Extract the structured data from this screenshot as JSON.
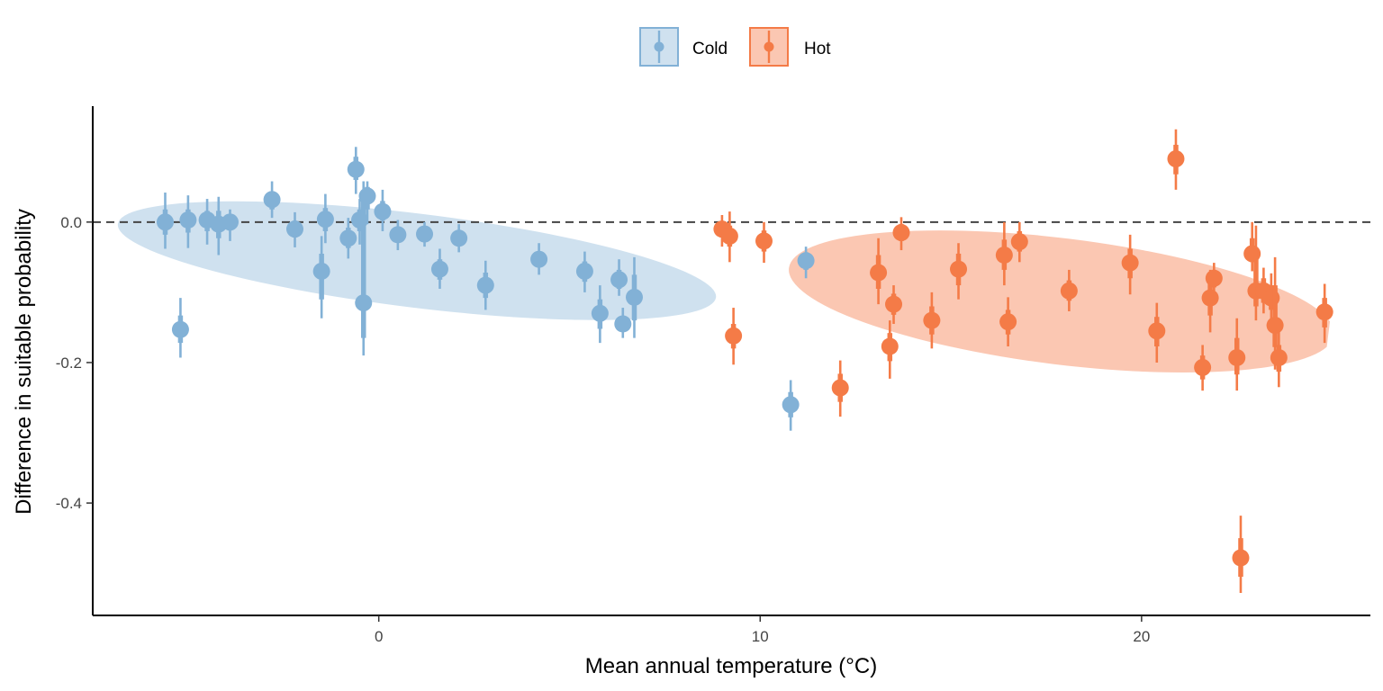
{
  "chart_data": {
    "type": "scatter",
    "title": "",
    "xlabel": "Mean annual temperature (°C)",
    "ylabel": "Difference in suitable probability",
    "xlim": [
      -7.5,
      26.0
    ],
    "ylim": [
      -0.56,
      0.165
    ],
    "x_ticks": [
      0,
      10,
      20
    ],
    "y_ticks": [
      0.0,
      -0.2,
      -0.4
    ],
    "x_tick_labels": [
      "0",
      "10",
      "20"
    ],
    "y_tick_labels": [
      "0.0",
      "-0.2",
      "-0.4"
    ],
    "grid": false,
    "reference_line": {
      "y": 0,
      "style": "dashed",
      "color": "#444444"
    },
    "legend": {
      "placement": "top-center",
      "entries": [
        "Cold",
        "Hot"
      ]
    },
    "colors": {
      "Cold": "#82b1d6",
      "Hot": "#f47b47",
      "Cold_fill": "#cfe1ef",
      "Hot_fill": "#fbc7b2"
    },
    "ellipses": [
      {
        "series": "Cold",
        "center": [
          1.0,
          -0.055
        ],
        "x_half_width": 7.9,
        "y_half_width": 0.108,
        "tilt": "downward"
      },
      {
        "series": "Hot",
        "center": [
          17.9,
          -0.113
        ],
        "x_half_width": 7.2,
        "y_half_width": 0.145,
        "tilt": "downward"
      }
    ],
    "series": [
      {
        "name": "Cold",
        "points": [
          {
            "x": -5.6,
            "y": 0.0,
            "lo90": -0.038,
            "hi90": 0.042,
            "lo50": -0.018,
            "hi50": 0.018
          },
          {
            "x": -5.2,
            "y": -0.153,
            "lo90": -0.193,
            "hi90": -0.108,
            "lo50": -0.172,
            "hi50": -0.133
          },
          {
            "x": -5.0,
            "y": 0.003,
            "lo90": -0.037,
            "hi90": 0.038,
            "lo50": -0.015,
            "hi50": 0.018
          },
          {
            "x": -4.5,
            "y": 0.003,
            "lo90": -0.032,
            "hi90": 0.033,
            "lo50": -0.013,
            "hi50": 0.016
          },
          {
            "x": -4.2,
            "y": -0.003,
            "lo90": -0.047,
            "hi90": 0.036,
            "lo50": -0.023,
            "hi50": 0.016
          },
          {
            "x": -3.9,
            "y": 0.0,
            "lo90": -0.027,
            "hi90": 0.018,
            "lo50": -0.012,
            "hi50": 0.008
          },
          {
            "x": -2.8,
            "y": 0.032,
            "lo90": 0.006,
            "hi90": 0.058,
            "lo50": 0.018,
            "hi50": 0.044
          },
          {
            "x": -2.2,
            "y": -0.01,
            "lo90": -0.036,
            "hi90": 0.014,
            "lo50": -0.022,
            "hi50": 0.002
          },
          {
            "x": -1.5,
            "y": -0.07,
            "lo90": -0.137,
            "hi90": -0.02,
            "lo50": -0.11,
            "hi50": -0.045
          },
          {
            "x": -1.4,
            "y": 0.004,
            "lo90": -0.03,
            "hi90": 0.04,
            "lo50": -0.013,
            "hi50": 0.02
          },
          {
            "x": -0.8,
            "y": -0.023,
            "lo90": -0.052,
            "hi90": 0.006,
            "lo50": -0.037,
            "hi50": -0.008
          },
          {
            "x": -0.6,
            "y": 0.075,
            "lo90": 0.04,
            "hi90": 0.107,
            "lo50": 0.06,
            "hi50": 0.093
          },
          {
            "x": -0.5,
            "y": 0.003,
            "lo90": -0.032,
            "hi90": 0.033,
            "lo50": -0.013,
            "hi50": 0.018
          },
          {
            "x": -0.4,
            "y": -0.115,
            "lo90": -0.19,
            "hi90": 0.058,
            "lo50": -0.165,
            "hi50": 0.045
          },
          {
            "x": -0.3,
            "y": 0.037,
            "lo90": -0.003,
            "hi90": 0.058,
            "lo50": 0.018,
            "hi50": 0.05
          },
          {
            "x": 0.1,
            "y": 0.015,
            "lo90": -0.013,
            "hi90": 0.046,
            "lo50": 0.002,
            "hi50": 0.03
          },
          {
            "x": 0.5,
            "y": -0.018,
            "lo90": -0.04,
            "hi90": 0.003,
            "lo50": -0.028,
            "hi50": -0.008
          },
          {
            "x": 1.2,
            "y": -0.017,
            "lo90": -0.035,
            "hi90": 0.0,
            "lo50": -0.026,
            "hi50": -0.008
          },
          {
            "x": 1.6,
            "y": -0.067,
            "lo90": -0.095,
            "hi90": -0.038,
            "lo50": -0.082,
            "hi50": -0.053
          },
          {
            "x": 2.1,
            "y": -0.023,
            "lo90": -0.043,
            "hi90": -0.003,
            "lo50": -0.032,
            "hi50": -0.013
          },
          {
            "x": 2.8,
            "y": -0.09,
            "lo90": -0.125,
            "hi90": -0.055,
            "lo50": -0.108,
            "hi50": -0.072
          },
          {
            "x": 4.2,
            "y": -0.053,
            "lo90": -0.075,
            "hi90": -0.03,
            "lo50": -0.064,
            "hi50": -0.042
          },
          {
            "x": 5.4,
            "y": -0.07,
            "lo90": -0.1,
            "hi90": -0.042,
            "lo50": -0.085,
            "hi50": -0.056
          },
          {
            "x": 5.8,
            "y": -0.13,
            "lo90": -0.172,
            "hi90": -0.09,
            "lo50": -0.152,
            "hi50": -0.11
          },
          {
            "x": 6.3,
            "y": -0.082,
            "lo90": -0.105,
            "hi90": -0.053,
            "lo50": -0.095,
            "hi50": -0.068
          },
          {
            "x": 6.4,
            "y": -0.145,
            "lo90": -0.165,
            "hi90": -0.122,
            "lo50": -0.155,
            "hi50": -0.135
          },
          {
            "x": 6.7,
            "y": -0.107,
            "lo90": -0.165,
            "hi90": -0.05,
            "lo50": -0.14,
            "hi50": -0.075
          },
          {
            "x": 11.2,
            "y": -0.055,
            "lo90": -0.08,
            "hi90": -0.035,
            "lo50": -0.068,
            "hi50": -0.043
          },
          {
            "x": 10.8,
            "y": -0.26,
            "lo90": -0.297,
            "hi90": -0.225,
            "lo50": -0.278,
            "hi50": -0.242
          }
        ]
      },
      {
        "name": "Hot",
        "points": [
          {
            "x": 9.0,
            "y": -0.01,
            "lo90": -0.035,
            "hi90": 0.01,
            "lo50": -0.022,
            "hi50": 0.0
          },
          {
            "x": 9.2,
            "y": -0.02,
            "lo90": -0.057,
            "hi90": 0.015,
            "lo50": -0.035,
            "hi50": -0.005
          },
          {
            "x": 9.3,
            "y": -0.162,
            "lo90": -0.203,
            "hi90": -0.122,
            "lo50": -0.18,
            "hi50": -0.145
          },
          {
            "x": 10.1,
            "y": -0.027,
            "lo90": -0.058,
            "hi90": 0.0,
            "lo50": -0.042,
            "hi50": -0.012
          },
          {
            "x": 12.1,
            "y": -0.236,
            "lo90": -0.277,
            "hi90": -0.197,
            "lo50": -0.256,
            "hi50": -0.216
          },
          {
            "x": 13.1,
            "y": -0.072,
            "lo90": -0.117,
            "hi90": -0.023,
            "lo50": -0.095,
            "hi50": -0.047
          },
          {
            "x": 13.4,
            "y": -0.177,
            "lo90": -0.223,
            "hi90": -0.14,
            "lo50": -0.198,
            "hi50": -0.158
          },
          {
            "x": 13.5,
            "y": -0.117,
            "lo90": -0.145,
            "hi90": -0.09,
            "lo50": -0.132,
            "hi50": -0.102
          },
          {
            "x": 13.7,
            "y": -0.015,
            "lo90": -0.04,
            "hi90": 0.007,
            "lo50": -0.027,
            "hi50": -0.003
          },
          {
            "x": 14.5,
            "y": -0.14,
            "lo90": -0.18,
            "hi90": -0.1,
            "lo50": -0.16,
            "hi50": -0.12
          },
          {
            "x": 15.2,
            "y": -0.067,
            "lo90": -0.11,
            "hi90": -0.03,
            "lo50": -0.09,
            "hi50": -0.045
          },
          {
            "x": 16.4,
            "y": -0.047,
            "lo90": -0.09,
            "hi90": 0.0,
            "lo50": -0.068,
            "hi50": -0.025
          },
          {
            "x": 16.5,
            "y": -0.142,
            "lo90": -0.177,
            "hi90": -0.107,
            "lo50": -0.16,
            "hi50": -0.125
          },
          {
            "x": 16.8,
            "y": -0.028,
            "lo90": -0.057,
            "hi90": 0.0,
            "lo50": -0.042,
            "hi50": -0.013
          },
          {
            "x": 18.1,
            "y": -0.098,
            "lo90": -0.127,
            "hi90": -0.068,
            "lo50": -0.112,
            "hi50": -0.083
          },
          {
            "x": 19.7,
            "y": -0.058,
            "lo90": -0.103,
            "hi90": -0.018,
            "lo50": -0.08,
            "hi50": -0.038
          },
          {
            "x": 20.4,
            "y": -0.155,
            "lo90": -0.2,
            "hi90": -0.115,
            "lo50": -0.177,
            "hi50": -0.135
          },
          {
            "x": 20.9,
            "y": 0.09,
            "lo90": 0.046,
            "hi90": 0.132,
            "lo50": 0.068,
            "hi50": 0.11
          },
          {
            "x": 21.6,
            "y": -0.207,
            "lo90": -0.24,
            "hi90": -0.175,
            "lo50": -0.224,
            "hi50": -0.19
          },
          {
            "x": 21.8,
            "y": -0.108,
            "lo90": -0.157,
            "hi90": -0.068,
            "lo50": -0.133,
            "hi50": -0.088
          },
          {
            "x": 21.9,
            "y": -0.08,
            "lo90": -0.105,
            "hi90": -0.058,
            "lo50": -0.093,
            "hi50": -0.068
          },
          {
            "x": 22.5,
            "y": -0.193,
            "lo90": -0.24,
            "hi90": -0.137,
            "lo50": -0.217,
            "hi50": -0.165
          },
          {
            "x": 22.6,
            "y": -0.478,
            "lo90": -0.528,
            "hi90": -0.418,
            "lo50": -0.505,
            "hi50": -0.45
          },
          {
            "x": 22.9,
            "y": -0.045,
            "lo90": -0.07,
            "hi90": -0.0,
            "lo50": -0.057,
            "hi50": -0.023
          },
          {
            "x": 23.0,
            "y": -0.098,
            "lo90": -0.14,
            "hi90": -0.005,
            "lo50": -0.12,
            "hi50": -0.05
          },
          {
            "x": 23.2,
            "y": -0.098,
            "lo90": -0.13,
            "hi90": -0.065,
            "lo50": -0.115,
            "hi50": -0.08
          },
          {
            "x": 23.4,
            "y": -0.108,
            "lo90": -0.142,
            "hi90": -0.073,
            "lo50": -0.125,
            "hi50": -0.09
          },
          {
            "x": 23.5,
            "y": -0.147,
            "lo90": -0.21,
            "hi90": -0.05,
            "lo50": -0.178,
            "hi50": -0.09
          },
          {
            "x": 23.6,
            "y": -0.193,
            "lo90": -0.235,
            "hi90": -0.155,
            "lo50": -0.213,
            "hi50": -0.175
          },
          {
            "x": 24.8,
            "y": -0.128,
            "lo90": -0.172,
            "hi90": -0.088,
            "lo50": -0.15,
            "hi50": -0.108
          }
        ]
      }
    ]
  }
}
